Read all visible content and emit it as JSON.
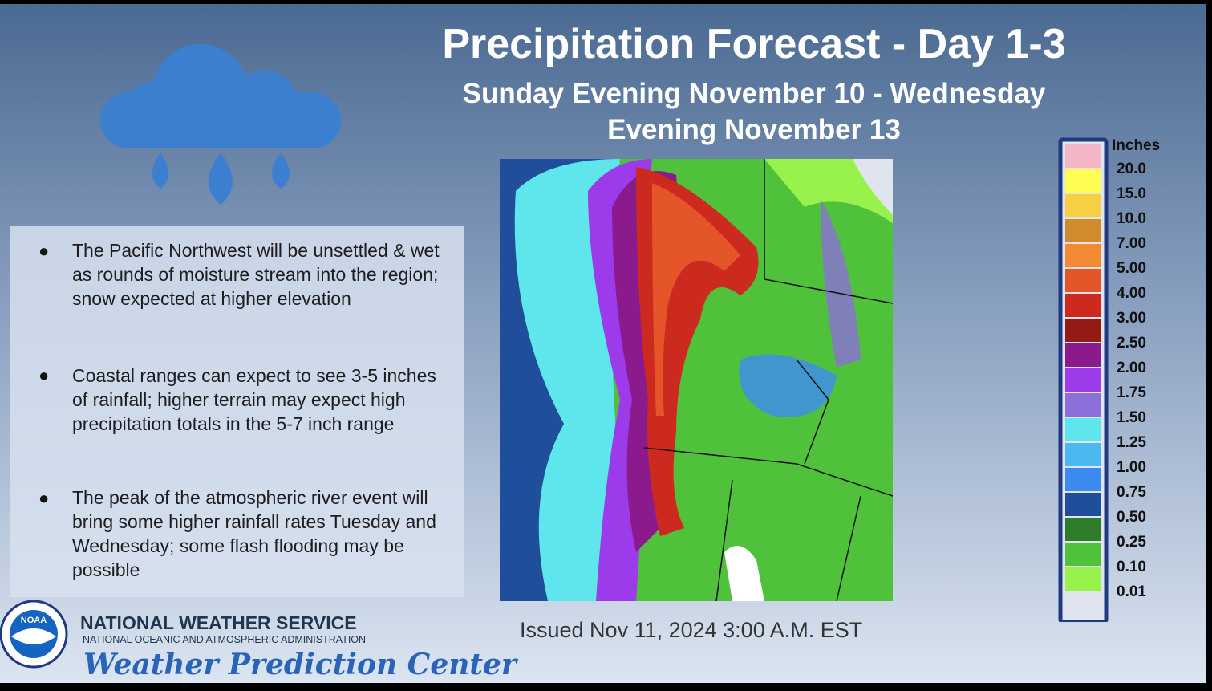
{
  "header": {
    "title": "Precipitation Forecast - Day 1-3",
    "subtitle_lines": [
      "Sunday Evening November 10 - Wednesday",
      "Evening November 13"
    ]
  },
  "bullets": [
    "The Pacific Northwest will be unsettled & wet as rounds of moisture stream into the region; snow expected at higher elevation",
    "Coastal ranges can expect to see 3-5 inches of rainfall; higher terrain may expect high precipitation totals in the 5-7 inch range",
    "The peak of the atmospheric river event will bring some higher rainfall rates Tuesday and Wednesday; some flash flooding may be possible"
  ],
  "legend": {
    "title": "Inches",
    "colors": [
      "#f2b6c6",
      "#fefe52",
      "#f7cf43",
      "#d18a2c",
      "#f28a33",
      "#e5552a",
      "#cc2a1f",
      "#961a14",
      "#8b1a8c",
      "#9b3bea",
      "#8c6fd9",
      "#5ee6ec",
      "#4bb8ef",
      "#3c8bf2",
      "#1f4f9a",
      "#2f7d2a",
      "#4fc13a",
      "#98f24c",
      "#dfe4ee"
    ],
    "labels": [
      "20.0",
      "15.0",
      "10.0",
      "7.00",
      "5.00",
      "4.00",
      "3.00",
      "2.50",
      "2.00",
      "1.75",
      "1.50",
      "1.25",
      "1.00",
      "0.75",
      "0.50",
      "0.25",
      "0.10",
      "0.01"
    ]
  },
  "issued": "Issued Nov 11, 2024 3:00 A.M. EST",
  "footer": {
    "logo": "NOAA",
    "agency": "NATIONAL WEATHER SERVICE",
    "parent": "NATIONAL OCEANIC AND ATMOSPHERIC ADMINISTRATION",
    "center": "Weather Prediction Center"
  }
}
